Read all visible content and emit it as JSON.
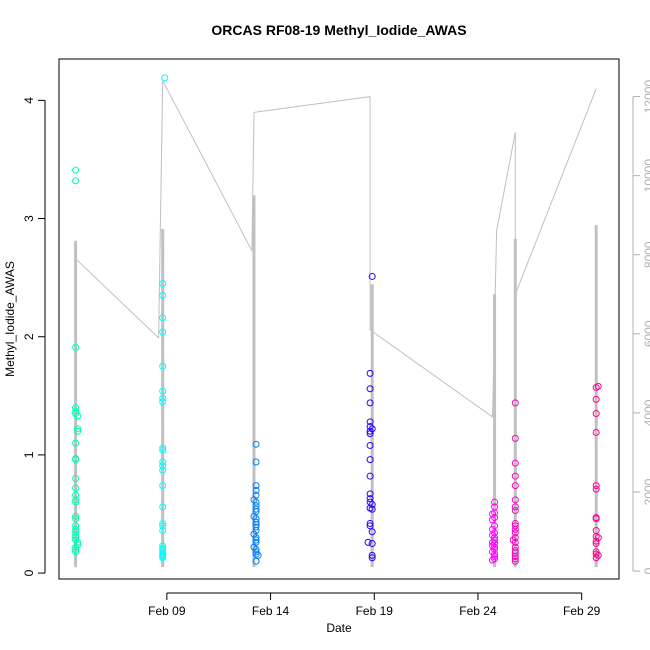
{
  "chart_data": {
    "type": "scatter",
    "title": "ORCAS RF08-19 Methyl_Iodide_AWAS",
    "xlabel": "Date",
    "ylabel": "Methyl_Iodide_AWAS",
    "x_ticks": [
      "Feb 09",
      "Feb 14",
      "Feb 19",
      "Feb 24",
      "Feb 29"
    ],
    "x_tick_days": [
      9,
      14,
      19,
      24,
      29
    ],
    "xlim_days": [
      3.8,
      30.8
    ],
    "ylim": [
      -0.05,
      4.35
    ],
    "y_ticks": [
      0,
      1,
      2,
      3,
      4
    ],
    "y2_ticks": [
      0,
      2000,
      4000,
      6000,
      8000,
      10000,
      12000
    ],
    "y2lim": [
      -200,
      12950
    ],
    "grid": false,
    "legend": "none",
    "series": [
      {
        "color": "#00FFB0",
        "points": [
          {
            "x": 4.6,
            "y": 3.41
          },
          {
            "x": 4.6,
            "y": 3.32
          },
          {
            "x": 4.6,
            "y": 1.91
          },
          {
            "x": 4.6,
            "y": 1.4
          },
          {
            "x": 4.6,
            "y": 1.37
          },
          {
            "x": 4.6,
            "y": 1.35
          },
          {
            "x": 4.7,
            "y": 1.33
          },
          {
            "x": 4.7,
            "y": 1.22
          },
          {
            "x": 4.7,
            "y": 1.2
          },
          {
            "x": 4.6,
            "y": 1.1
          },
          {
            "x": 4.6,
            "y": 0.97
          },
          {
            "x": 4.6,
            "y": 0.96
          },
          {
            "x": 4.6,
            "y": 0.8
          },
          {
            "x": 4.6,
            "y": 0.72
          },
          {
            "x": 4.6,
            "y": 0.66
          },
          {
            "x": 4.6,
            "y": 0.62
          },
          {
            "x": 4.6,
            "y": 0.6
          },
          {
            "x": 4.6,
            "y": 0.48
          },
          {
            "x": 4.6,
            "y": 0.46
          },
          {
            "x": 4.6,
            "y": 0.4
          },
          {
            "x": 4.6,
            "y": 0.37
          },
          {
            "x": 4.6,
            "y": 0.35
          },
          {
            "x": 4.6,
            "y": 0.32
          },
          {
            "x": 4.6,
            "y": 0.3
          },
          {
            "x": 4.6,
            "y": 0.28
          },
          {
            "x": 4.7,
            "y": 0.26
          },
          {
            "x": 4.7,
            "y": 0.24
          },
          {
            "x": 4.6,
            "y": 0.22
          },
          {
            "x": 4.6,
            "y": 0.2
          },
          {
            "x": 4.6,
            "y": 0.18
          }
        ]
      },
      {
        "color": "#00FFFF",
        "points": [
          {
            "x": 8.9,
            "y": 4.19
          },
          {
            "x": 8.8,
            "y": 2.45
          },
          {
            "x": 8.8,
            "y": 2.35
          },
          {
            "x": 8.8,
            "y": 2.16
          },
          {
            "x": 8.8,
            "y": 2.04
          },
          {
            "x": 8.8,
            "y": 1.75
          },
          {
            "x": 8.8,
            "y": 1.54
          },
          {
            "x": 8.8,
            "y": 1.48
          },
          {
            "x": 8.8,
            "y": 1.45
          },
          {
            "x": 8.8,
            "y": 1.06
          },
          {
            "x": 8.8,
            "y": 1.04
          },
          {
            "x": 8.8,
            "y": 0.94
          },
          {
            "x": 8.8,
            "y": 0.91
          },
          {
            "x": 8.8,
            "y": 0.87
          },
          {
            "x": 8.8,
            "y": 0.74
          },
          {
            "x": 8.8,
            "y": 0.56
          },
          {
            "x": 8.8,
            "y": 0.42
          },
          {
            "x": 8.8,
            "y": 0.4
          },
          {
            "x": 8.8,
            "y": 0.36
          },
          {
            "x": 8.8,
            "y": 0.23
          },
          {
            "x": 8.8,
            "y": 0.21
          },
          {
            "x": 8.8,
            "y": 0.2
          },
          {
            "x": 8.8,
            "y": 0.18
          },
          {
            "x": 8.8,
            "y": 0.16
          },
          {
            "x": 8.8,
            "y": 0.15
          },
          {
            "x": 8.8,
            "y": 0.14
          },
          {
            "x": 8.8,
            "y": 0.13
          }
        ]
      },
      {
        "color": "#0080FF",
        "points": [
          {
            "x": 13.3,
            "y": 1.09
          },
          {
            "x": 13.3,
            "y": 0.94
          },
          {
            "x": 13.3,
            "y": 0.74
          },
          {
            "x": 13.3,
            "y": 0.7
          },
          {
            "x": 13.3,
            "y": 0.66
          },
          {
            "x": 13.2,
            "y": 0.62
          },
          {
            "x": 13.3,
            "y": 0.6
          },
          {
            "x": 13.3,
            "y": 0.57
          },
          {
            "x": 13.3,
            "y": 0.54
          },
          {
            "x": 13.3,
            "y": 0.52
          },
          {
            "x": 13.2,
            "y": 0.48
          },
          {
            "x": 13.3,
            "y": 0.46
          },
          {
            "x": 13.3,
            "y": 0.43
          },
          {
            "x": 13.3,
            "y": 0.41
          },
          {
            "x": 13.3,
            "y": 0.39
          },
          {
            "x": 13.3,
            "y": 0.36
          },
          {
            "x": 13.2,
            "y": 0.33
          },
          {
            "x": 13.3,
            "y": 0.3
          },
          {
            "x": 13.3,
            "y": 0.28
          },
          {
            "x": 13.3,
            "y": 0.26
          },
          {
            "x": 13.2,
            "y": 0.22
          },
          {
            "x": 13.3,
            "y": 0.2
          },
          {
            "x": 13.3,
            "y": 0.18
          },
          {
            "x": 13.3,
            "y": 0.16
          },
          {
            "x": 13.4,
            "y": 0.15
          },
          {
            "x": 13.3,
            "y": 0.1
          }
        ]
      },
      {
        "color": "#3000FF",
        "points": [
          {
            "x": 18.9,
            "y": 2.51
          },
          {
            "x": 18.8,
            "y": 1.69
          },
          {
            "x": 18.8,
            "y": 1.56
          },
          {
            "x": 18.8,
            "y": 1.44
          },
          {
            "x": 18.8,
            "y": 1.28
          },
          {
            "x": 18.8,
            "y": 1.24
          },
          {
            "x": 18.9,
            "y": 1.22
          },
          {
            "x": 18.8,
            "y": 1.2
          },
          {
            "x": 18.8,
            "y": 1.18
          },
          {
            "x": 18.8,
            "y": 1.08
          },
          {
            "x": 18.8,
            "y": 0.96
          },
          {
            "x": 18.8,
            "y": 0.82
          },
          {
            "x": 18.8,
            "y": 0.67
          },
          {
            "x": 18.8,
            "y": 0.63
          },
          {
            "x": 18.8,
            "y": 0.6
          },
          {
            "x": 18.9,
            "y": 0.58
          },
          {
            "x": 18.8,
            "y": 0.55
          },
          {
            "x": 18.9,
            "y": 0.54
          },
          {
            "x": 18.8,
            "y": 0.42
          },
          {
            "x": 18.8,
            "y": 0.4
          },
          {
            "x": 18.9,
            "y": 0.35
          },
          {
            "x": 18.7,
            "y": 0.26
          },
          {
            "x": 18.9,
            "y": 0.25
          },
          {
            "x": 18.9,
            "y": 0.15
          },
          {
            "x": 18.9,
            "y": 0.13
          }
        ]
      },
      {
        "color": "#FF00FF",
        "points": [
          {
            "x": 24.8,
            "y": 0.6
          },
          {
            "x": 24.8,
            "y": 0.56
          },
          {
            "x": 24.8,
            "y": 0.51
          },
          {
            "x": 24.7,
            "y": 0.5
          },
          {
            "x": 24.8,
            "y": 0.47
          },
          {
            "x": 24.7,
            "y": 0.45
          },
          {
            "x": 24.8,
            "y": 0.4
          },
          {
            "x": 24.7,
            "y": 0.37
          },
          {
            "x": 24.8,
            "y": 0.34
          },
          {
            "x": 24.7,
            "y": 0.32
          },
          {
            "x": 24.8,
            "y": 0.3
          },
          {
            "x": 24.8,
            "y": 0.28
          },
          {
            "x": 24.7,
            "y": 0.26
          },
          {
            "x": 24.8,
            "y": 0.25
          },
          {
            "x": 24.7,
            "y": 0.23
          },
          {
            "x": 24.8,
            "y": 0.22
          },
          {
            "x": 24.8,
            "y": 0.2
          },
          {
            "x": 24.7,
            "y": 0.18
          },
          {
            "x": 24.8,
            "y": 0.16
          },
          {
            "x": 24.8,
            "y": 0.14
          },
          {
            "x": 24.8,
            "y": 0.12
          },
          {
            "x": 24.7,
            "y": 0.11
          }
        ]
      },
      {
        "color": "#FF00C0",
        "points": [
          {
            "x": 25.8,
            "y": 1.44
          },
          {
            "x": 25.8,
            "y": 1.14
          },
          {
            "x": 25.8,
            "y": 0.93
          },
          {
            "x": 25.8,
            "y": 0.82
          },
          {
            "x": 25.8,
            "y": 0.74
          },
          {
            "x": 25.8,
            "y": 0.62
          },
          {
            "x": 25.8,
            "y": 0.56
          },
          {
            "x": 25.8,
            "y": 0.53
          },
          {
            "x": 25.8,
            "y": 0.42
          },
          {
            "x": 25.8,
            "y": 0.4
          },
          {
            "x": 25.8,
            "y": 0.37
          },
          {
            "x": 25.8,
            "y": 0.34
          },
          {
            "x": 25.8,
            "y": 0.3
          },
          {
            "x": 25.7,
            "y": 0.28
          },
          {
            "x": 25.8,
            "y": 0.26
          },
          {
            "x": 25.8,
            "y": 0.22
          },
          {
            "x": 25.8,
            "y": 0.19
          },
          {
            "x": 25.8,
            "y": 0.17
          },
          {
            "x": 25.8,
            "y": 0.14
          },
          {
            "x": 25.8,
            "y": 0.12
          },
          {
            "x": 25.8,
            "y": 0.1
          }
        ]
      },
      {
        "color": "#FF0090",
        "points": [
          {
            "x": 29.8,
            "y": 1.58
          },
          {
            "x": 29.7,
            "y": 1.57
          },
          {
            "x": 29.7,
            "y": 1.47
          },
          {
            "x": 29.7,
            "y": 1.35
          },
          {
            "x": 29.7,
            "y": 1.19
          },
          {
            "x": 29.7,
            "y": 0.74
          },
          {
            "x": 29.7,
            "y": 0.71
          },
          {
            "x": 29.7,
            "y": 0.47
          },
          {
            "x": 29.7,
            "y": 0.46
          },
          {
            "x": 29.7,
            "y": 0.36
          },
          {
            "x": 29.7,
            "y": 0.31
          },
          {
            "x": 29.8,
            "y": 0.3
          },
          {
            "x": 29.7,
            "y": 0.27
          },
          {
            "x": 29.7,
            "y": 0.25
          },
          {
            "x": 29.7,
            "y": 0.18
          },
          {
            "x": 29.7,
            "y": 0.16
          },
          {
            "x": 29.8,
            "y": 0.15
          },
          {
            "x": 29.7,
            "y": 0.13
          }
        ]
      }
    ],
    "altitude_series": {
      "color": "#C0C0C0",
      "axis": "right",
      "bands": [
        {
          "x": 4.6,
          "low": 100,
          "high": 8350
        },
        {
          "x": 8.8,
          "low": 100,
          "high": 8650
        },
        {
          "x": 13.2,
          "low": 100,
          "high": 9500
        },
        {
          "x": 18.9,
          "low": 100,
          "high": 7250
        },
        {
          "x": 24.8,
          "low": 100,
          "high": 7000
        },
        {
          "x": 25.8,
          "low": 100,
          "high": 8400
        },
        {
          "x": 29.7,
          "low": 100,
          "high": 8750
        }
      ],
      "line": [
        {
          "x": 4.6,
          "y": 7900
        },
        {
          "x": 8.6,
          "y": 5900
        },
        {
          "x": 8.8,
          "y": 12400
        },
        {
          "x": 13.1,
          "y": 8100
        },
        {
          "x": 13.2,
          "y": 11600
        },
        {
          "x": 18.8,
          "y": 12000
        },
        {
          "x": 18.8,
          "y": 6100
        },
        {
          "x": 24.7,
          "y": 3900
        },
        {
          "x": 24.9,
          "y": 8600
        },
        {
          "x": 25.8,
          "y": 11100
        },
        {
          "x": 25.8,
          "y": 7000
        },
        {
          "x": 29.7,
          "y": 12200
        }
      ]
    }
  }
}
